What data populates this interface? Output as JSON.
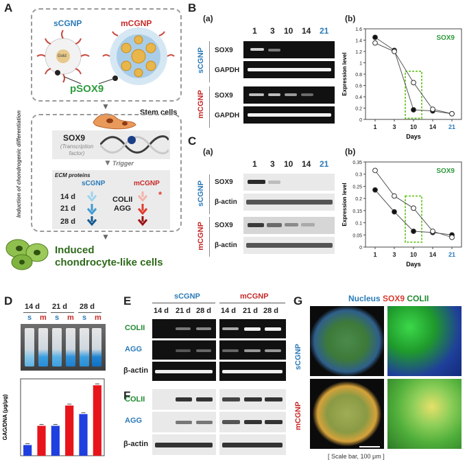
{
  "panelA": {
    "label": "A",
    "scgnp": "sCGNP",
    "mcgnp": "mCGNP",
    "gold": "Gold",
    "psox9": "pSOX9",
    "stem_cells": "Stem cells",
    "side_label": "Induction of chondrogenic differentiation",
    "sox9": "SOX9",
    "tf": "(Transcription factor)",
    "trigger": "Trigger",
    "ecm": "ECM proteins",
    "days": [
      "14 d",
      "21 d",
      "28 d"
    ],
    "colii": "COLII",
    "agg": "AGG",
    "star": "*",
    "induced": "Induced",
    "chondro": "chondrocyte-like cells"
  },
  "panelB": {
    "label": "B",
    "sub_a": "(a)",
    "sub_b": "(b)",
    "lanes": [
      "1",
      "3",
      "10",
      "14",
      "21"
    ],
    "scgnp": "sCGNP",
    "mcgnp": "mCGNP",
    "sox9": "SOX9",
    "gapdh": "GAPDH"
  },
  "panelC": {
    "label": "C",
    "sub_a": "(a)",
    "sub_b": "(b)",
    "lanes": [
      "1",
      "3",
      "10",
      "14",
      "21"
    ],
    "scgnp": "sCGNP",
    "mcgnp": "mCGNP",
    "sox9": "SOX9",
    "bactin": "β-actin"
  },
  "panelD": {
    "label": "D",
    "days": [
      "14 d",
      "21 d",
      "28 d"
    ],
    "sm": [
      "s",
      "m",
      "s",
      "m",
      "s",
      "m"
    ]
  },
  "panelE": {
    "label": "E",
    "scgnp": "sCGNP",
    "mcgnp": "mCGNP",
    "days": [
      "14 d",
      "21 d",
      "28 d",
      "14 d",
      "21 d",
      "28 d"
    ],
    "colii": "COLII",
    "agg": "AGG",
    "bactin": "β-actin"
  },
  "panelF": {
    "label": "F",
    "colii": "COLII",
    "agg": "AGG",
    "bactin": "β-actin"
  },
  "panelG": {
    "label": "G",
    "nucleus": "Nucleus",
    "sox9": "SOX9",
    "colii": "COLII",
    "scgnp": "sCGNP",
    "mcgnp": "mCGNP",
    "scale": "[ Scale bar, 100 μm ]"
  },
  "chart_data": [
    {
      "type": "line",
      "panel": "B(b)",
      "title": "SOX9",
      "xlabel": "Days",
      "ylabel": "Expression level",
      "x": [
        1,
        3,
        10,
        14,
        21
      ],
      "ylim": [
        0,
        1.6
      ],
      "yticks": [
        0.0,
        0.2,
        0.4,
        0.6,
        0.8,
        1.0,
        1.2,
        1.4,
        1.6
      ],
      "series": [
        {
          "marker": "filled",
          "values": [
            1.45,
            1.22,
            0.17,
            0.15,
            0.1
          ]
        },
        {
          "marker": "open",
          "values": [
            1.35,
            1.2,
            0.65,
            0.18,
            0.1
          ]
        }
      ]
    },
    {
      "type": "line",
      "panel": "C(b)",
      "title": "SOX9",
      "xlabel": "Days",
      "ylabel": "Expression level",
      "x": [
        1,
        3,
        10,
        14,
        21
      ],
      "ylim": [
        0,
        0.35
      ],
      "yticks": [
        0.0,
        0.05,
        0.1,
        0.15,
        0.2,
        0.25,
        0.3,
        0.35
      ],
      "series": [
        {
          "marker": "filled",
          "values": [
            0.235,
            0.145,
            0.065,
            0.06,
            0.05
          ]
        },
        {
          "marker": "open",
          "values": [
            0.315,
            0.21,
            0.16,
            0.065,
            0.04
          ]
        }
      ]
    },
    {
      "type": "bar",
      "panel": "D",
      "ylabel": "GAG/DNA (μg/μg)",
      "categories": [
        "14 d s",
        "14 d m",
        "21 d s",
        "21 d m",
        "28 d s",
        "28 d m"
      ],
      "values": [
        0.1,
        0.28,
        0.28,
        0.47,
        0.39,
        0.66
      ],
      "colors": [
        "#1f3fe0",
        "#e8141b",
        "#1f3fe0",
        "#e8141b",
        "#1f3fe0",
        "#e8141b"
      ]
    }
  ]
}
